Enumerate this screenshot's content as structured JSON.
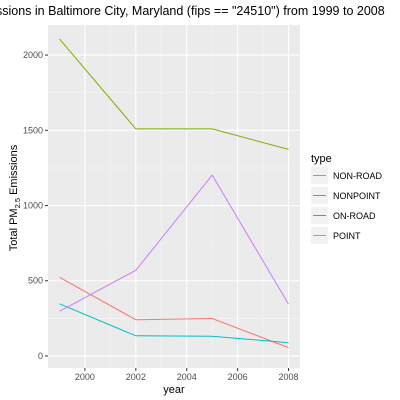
{
  "chart_data": {
    "type": "line",
    "title": "ssions in Baltimore City, Maryland (fips == \"24510\") from 1999 to 2008",
    "xlabel": "year",
    "ylabel": {
      "prefix": "Total PM",
      "subscript": "2.5",
      "suffix": " Emissions"
    },
    "x": [
      1999,
      2002,
      2005,
      2008
    ],
    "xlim": [
      1998.55,
      2008.45
    ],
    "ylim": [
      -80,
      2200
    ],
    "x_ticks": [
      2000,
      2002,
      2004,
      2006,
      2008
    ],
    "y_ticks": [
      0,
      500,
      1000,
      1500,
      2000
    ],
    "grid": true,
    "legend": {
      "title": "type",
      "position": "right"
    },
    "series": [
      {
        "name": "NON-ROAD",
        "color": "#F8766D",
        "values": [
          522.9,
          240.8,
          248.9,
          55.8
        ]
      },
      {
        "name": "NONPOINT",
        "color": "#7CAE00",
        "values": [
          2107.6,
          1509.5,
          1509.5,
          1373.2
        ]
      },
      {
        "name": "ON-ROAD",
        "color": "#00BFC4",
        "values": [
          346.8,
          134.3,
          130.4,
          88.3
        ]
      },
      {
        "name": "POINT",
        "color": "#C77CFF",
        "values": [
          296.8,
          569.3,
          1202.5,
          345.0
        ]
      }
    ]
  }
}
